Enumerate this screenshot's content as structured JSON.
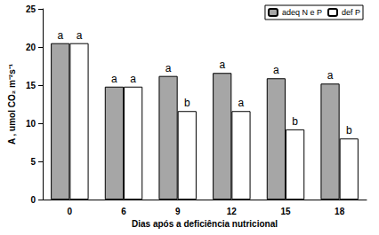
{
  "chart_data": {
    "type": "bar",
    "x_label": "Dias após a deficiência nutricional",
    "y_label": "A , umol CO₂ m⁻²s⁻¹",
    "categories": [
      "0",
      "6",
      "9",
      "12",
      "15",
      "18"
    ],
    "series": [
      {
        "name": "adeq N e P",
        "color": "#a6a6a6",
        "values": [
          20.5,
          14.8,
          16.2,
          16.6,
          15.9,
          15.2
        ],
        "significance": [
          "a",
          "a",
          "a",
          "a",
          "a",
          "a"
        ]
      },
      {
        "name": "def P",
        "color": "#ffffff",
        "values": [
          20.5,
          14.8,
          11.6,
          11.6,
          9.2,
          8.0
        ],
        "significance": [
          "a",
          "a",
          "b",
          "a",
          "b",
          "b"
        ]
      }
    ],
    "ylim": [
      0,
      25
    ],
    "yticks": [
      0,
      5,
      10,
      15,
      20,
      25
    ],
    "grid": false,
    "legend": "upper right"
  }
}
